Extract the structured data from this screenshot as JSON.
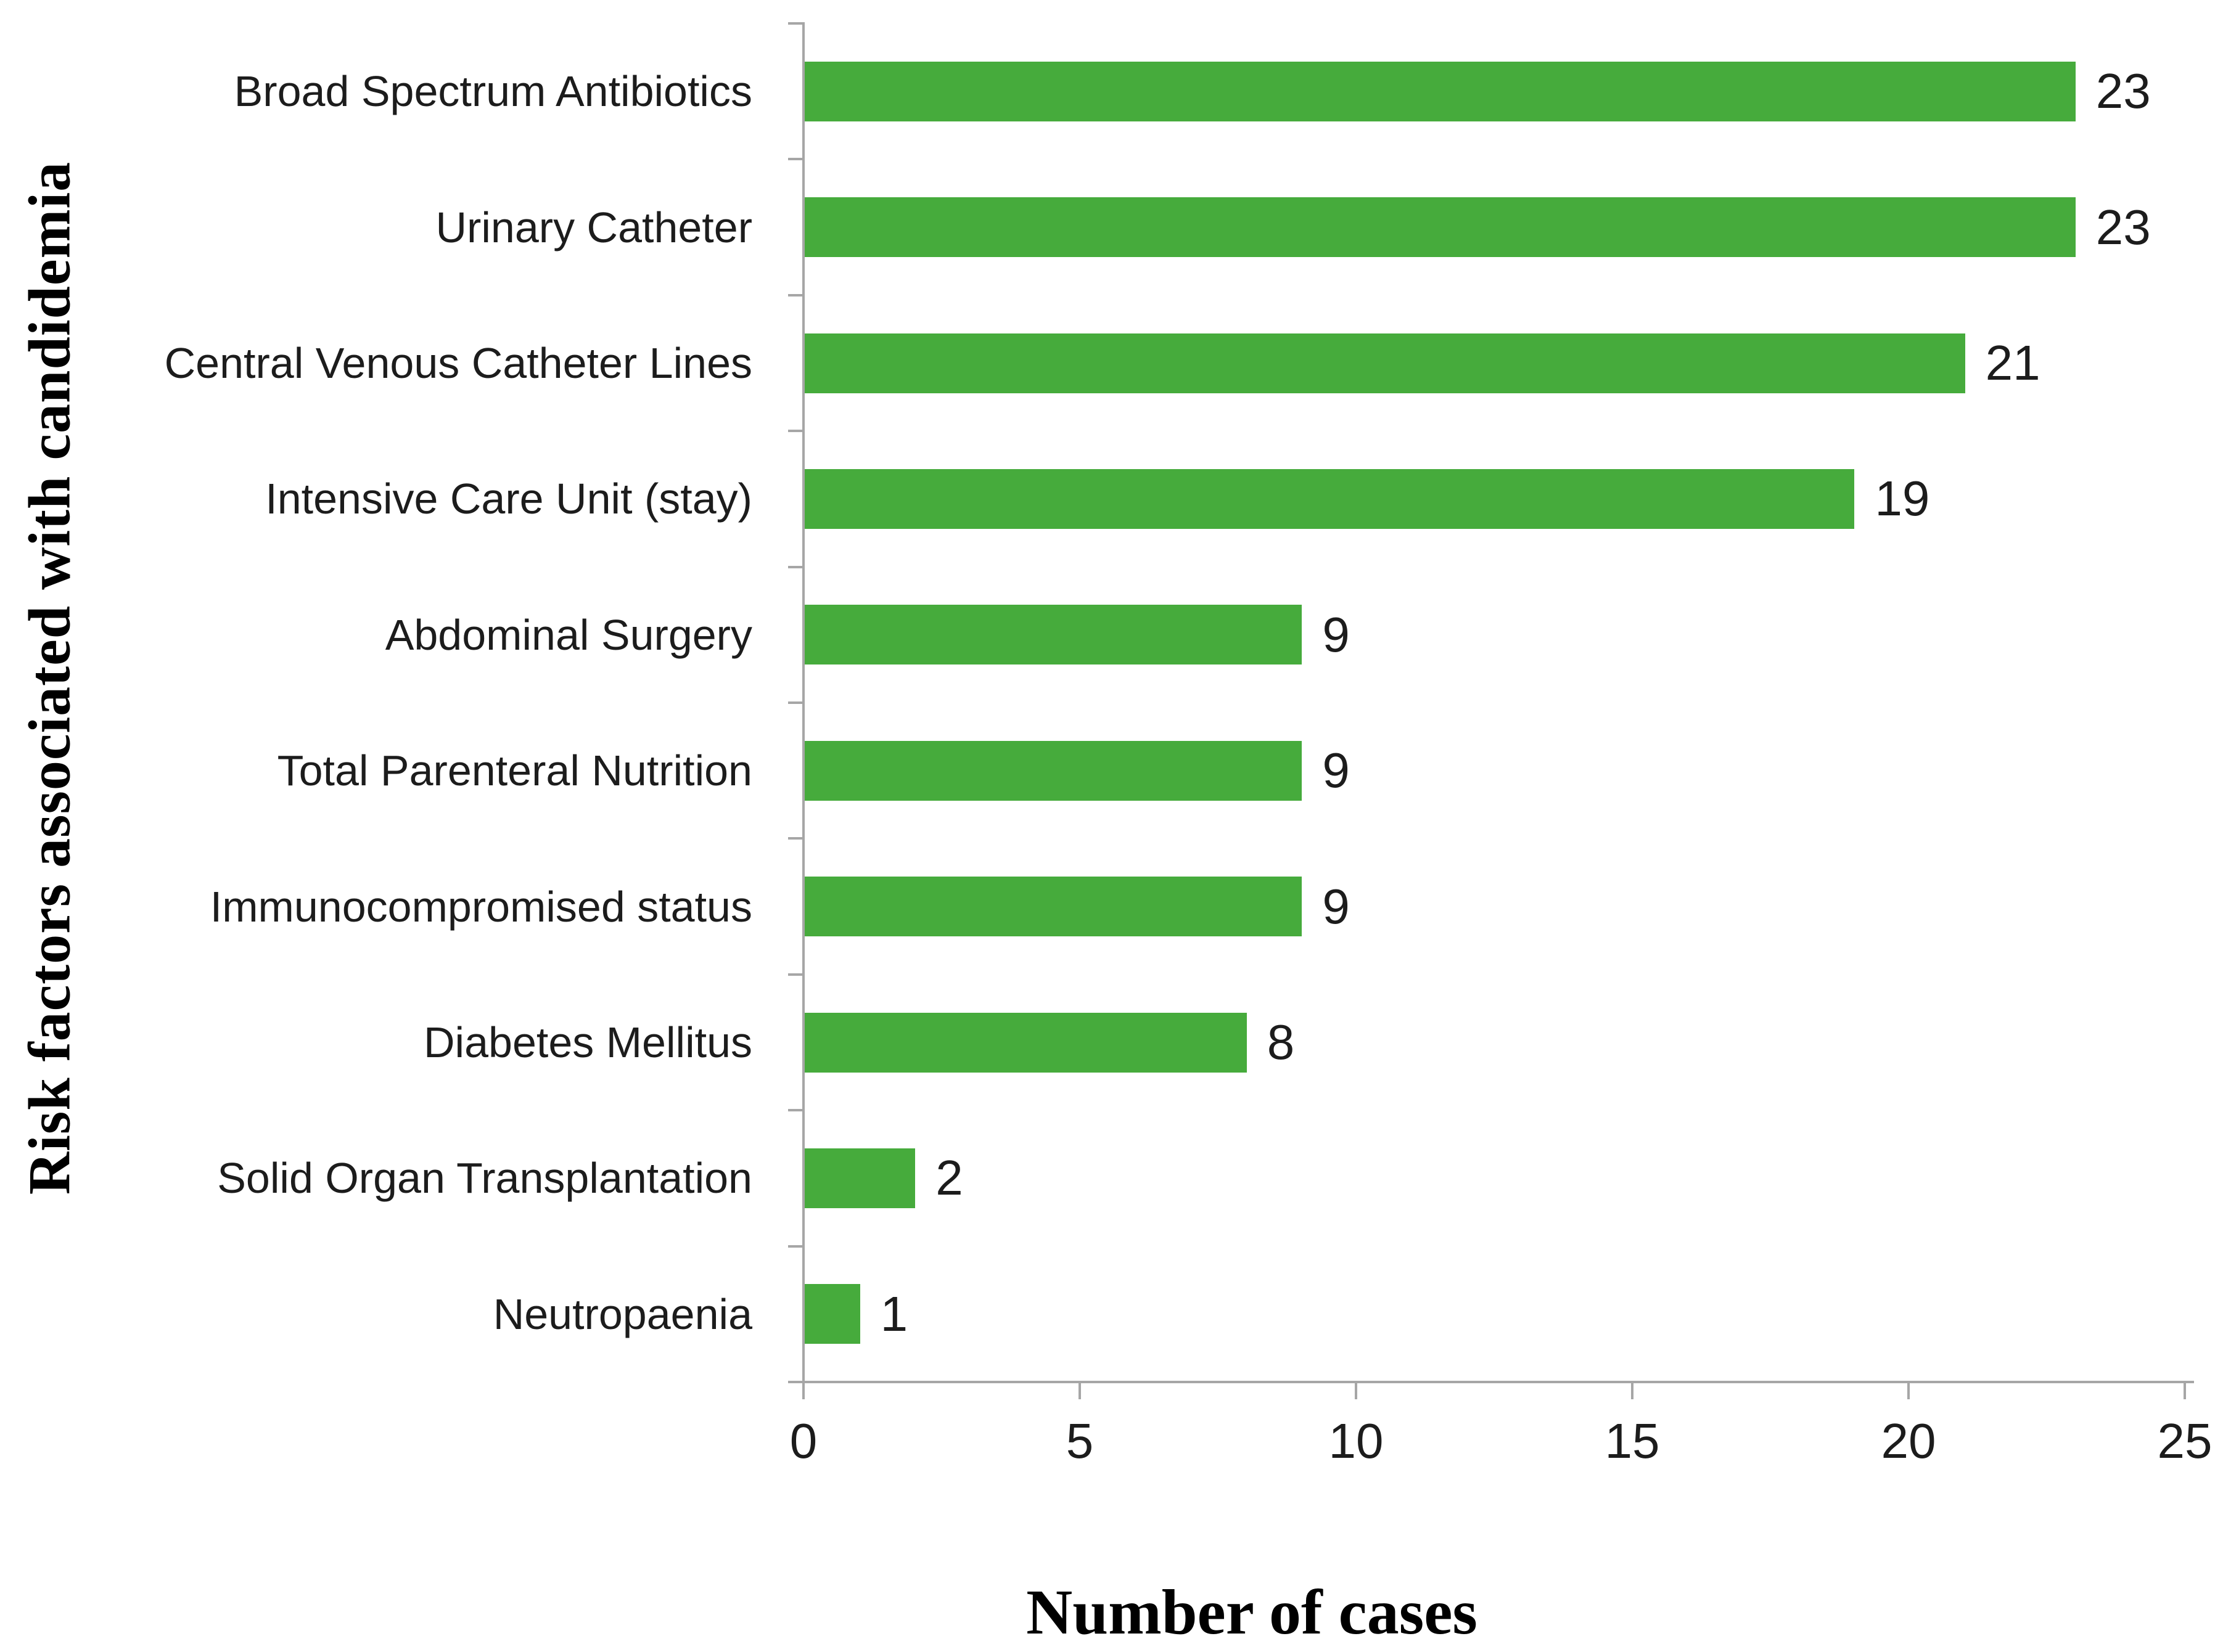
{
  "chart_data": {
    "type": "bar",
    "orientation": "horizontal",
    "title": "",
    "xlabel": "Number of cases",
    "ylabel": "Risk factors associated with candidemia",
    "categories": [
      "Broad Spectrum Antibiotics",
      "Urinary Catheter",
      "Central Venous Catheter Lines",
      "Intensive Care Unit (stay)",
      "Abdominal Surgery",
      "Total Parenteral Nutrition",
      "Immunocompromised status",
      "Diabetes Mellitus",
      "Solid Organ Transplantation",
      "Neutropaenia"
    ],
    "values": [
      23,
      23,
      21,
      19,
      9,
      9,
      9,
      8,
      2,
      1
    ],
    "value_labels_shown": true,
    "xlim": [
      0,
      25
    ],
    "xticks": [
      0,
      5,
      10,
      15,
      20,
      25
    ],
    "grid": false,
    "legend_position": "none",
    "bar_color": "#46ab3c",
    "axis_color": "#a6a6a6",
    "text_color": "#1c1c1c"
  }
}
